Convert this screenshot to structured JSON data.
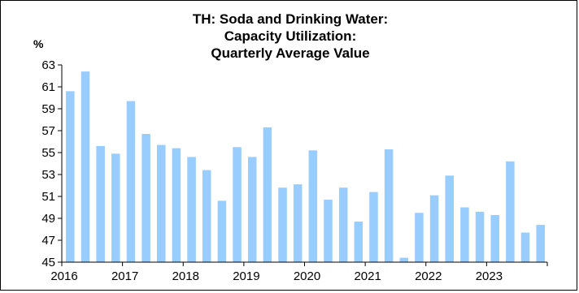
{
  "chart_data": {
    "type": "bar",
    "title_lines": [
      "TH: Soda and Drinking Water:",
      "Capacity Utilization:",
      "Quarterly Average Value"
    ],
    "ylabel": "%",
    "xlabel": "",
    "ylim": [
      45,
      63
    ],
    "yticks": [
      45,
      47,
      49,
      51,
      53,
      55,
      57,
      59,
      61,
      63
    ],
    "year_labels": [
      "2016",
      "2017",
      "2018",
      "2019",
      "2020",
      "2021",
      "2022",
      "2023"
    ],
    "categories": [
      "2016 Q1",
      "2016 Q2",
      "2016 Q3",
      "2016 Q4",
      "2017 Q1",
      "2017 Q2",
      "2017 Q3",
      "2017 Q4",
      "2018 Q1",
      "2018 Q2",
      "2018 Q3",
      "2018 Q4",
      "2019 Q1",
      "2019 Q2",
      "2019 Q3",
      "2019 Q4",
      "2020 Q1",
      "2020 Q2",
      "2020 Q3",
      "2020 Q4",
      "2021 Q1",
      "2021 Q2",
      "2021 Q3",
      "2021 Q4",
      "2022 Q1",
      "2022 Q2",
      "2022 Q3",
      "2022 Q4",
      "2023 Q1",
      "2023 Q2",
      "2023 Q3",
      "2023 Q4"
    ],
    "values": [
      60.6,
      62.4,
      55.6,
      54.9,
      59.7,
      56.7,
      55.7,
      55.4,
      54.6,
      53.4,
      50.6,
      55.5,
      54.6,
      57.3,
      51.8,
      52.1,
      55.2,
      50.7,
      51.8,
      48.7,
      51.4,
      55.3,
      45.4,
      49.5,
      51.1,
      52.9,
      50.0,
      49.6,
      49.3,
      54.2,
      47.7,
      48.4
    ],
    "bar_color": "#99ccff",
    "grid": false,
    "legend": "none"
  }
}
